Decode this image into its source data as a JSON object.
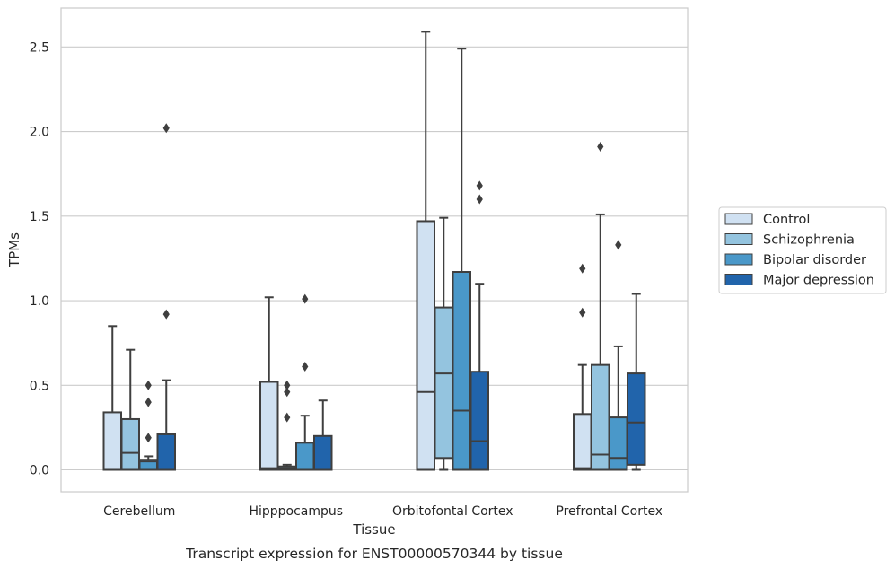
{
  "chart_data": {
    "type": "boxplot",
    "xlabel": "Tissue",
    "ylabel": "TPMs",
    "caption": "Transcript expression for ENST00000570344 by tissue",
    "ylim": [
      -0.13,
      2.73
    ],
    "yticks": [
      "0.0",
      "0.5",
      "1.0",
      "1.5",
      "2.0",
      "2.5"
    ],
    "grid": true,
    "legend_position": "right",
    "categories": [
      "Cerebellum",
      "Hipppocampus",
      "Orbitofontal Cortex",
      "Prefrontal Cortex"
    ],
    "series": [
      {
        "name": "Control",
        "color": "#d0e1f2",
        "boxes": [
          {
            "q1": 0.0,
            "median": 0.0,
            "q3": 0.34,
            "wlo": 0.0,
            "whi": 0.85,
            "fliers": []
          },
          {
            "q1": 0.0,
            "median": 0.01,
            "q3": 0.52,
            "wlo": 0.0,
            "whi": 1.02,
            "fliers": []
          },
          {
            "q1": 0.0,
            "median": 0.46,
            "q3": 1.47,
            "wlo": 0.0,
            "whi": 2.59,
            "fliers": []
          },
          {
            "q1": 0.0,
            "median": 0.01,
            "q3": 0.33,
            "wlo": 0.0,
            "whi": 0.62,
            "fliers": [
              0.93,
              1.19
            ]
          }
        ]
      },
      {
        "name": "Schizophrenia",
        "color": "#94c4df",
        "boxes": [
          {
            "q1": 0.0,
            "median": 0.1,
            "q3": 0.3,
            "wlo": 0.0,
            "whi": 0.71,
            "fliers": []
          },
          {
            "q1": 0.0,
            "median": 0.01,
            "q3": 0.02,
            "wlo": 0.0,
            "whi": 0.03,
            "fliers": [
              0.31,
              0.46,
              0.5
            ]
          },
          {
            "q1": 0.07,
            "median": 0.57,
            "q3": 0.96,
            "wlo": 0.0,
            "whi": 1.49,
            "fliers": []
          },
          {
            "q1": 0.0,
            "median": 0.09,
            "q3": 0.62,
            "wlo": 0.0,
            "whi": 1.51,
            "fliers": [
              1.91
            ]
          }
        ]
      },
      {
        "name": "Bipolar disorder",
        "color": "#4a98c9",
        "boxes": [
          {
            "q1": 0.0,
            "median": 0.05,
            "q3": 0.06,
            "wlo": 0.0,
            "whi": 0.08,
            "fliers": [
              0.19,
              0.4,
              0.5
            ]
          },
          {
            "q1": 0.0,
            "median": 0.0,
            "q3": 0.16,
            "wlo": 0.0,
            "whi": 0.32,
            "fliers": [
              0.61,
              1.01
            ]
          },
          {
            "q1": 0.0,
            "median": 0.35,
            "q3": 1.17,
            "wlo": 0.0,
            "whi": 2.49,
            "fliers": []
          },
          {
            "q1": 0.0,
            "median": 0.07,
            "q3": 0.31,
            "wlo": 0.0,
            "whi": 0.73,
            "fliers": [
              1.33
            ]
          }
        ]
      },
      {
        "name": "Major depression",
        "color": "#2164ab",
        "boxes": [
          {
            "q1": 0.0,
            "median": 0.0,
            "q3": 0.21,
            "wlo": 0.0,
            "whi": 0.53,
            "fliers": [
              0.92,
              2.02
            ]
          },
          {
            "q1": 0.0,
            "median": 0.0,
            "q3": 0.2,
            "wlo": 0.0,
            "whi": 0.41,
            "fliers": []
          },
          {
            "q1": 0.0,
            "median": 0.17,
            "q3": 0.58,
            "wlo": 0.0,
            "whi": 1.1,
            "fliers": [
              1.6,
              1.68
            ]
          },
          {
            "q1": 0.03,
            "median": 0.28,
            "q3": 0.57,
            "wlo": 0.0,
            "whi": 1.04,
            "fliers": []
          }
        ]
      }
    ]
  }
}
